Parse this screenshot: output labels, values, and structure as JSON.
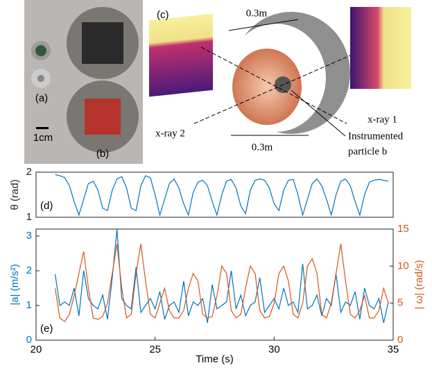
{
  "figure": {
    "labels": {
      "a": "(a)",
      "scale": "1cm",
      "b": "(b)",
      "c": "(c)",
      "size_top": "0.3m",
      "size_bottom": "0.3m",
      "xray2": "x-ray 2",
      "xray1": "x-ray 1",
      "particle": [
        "Instrumented",
        "particle b"
      ]
    }
  },
  "chart_data": [
    {
      "type": "line",
      "panel": "(d)",
      "ylabel": "θ (rad)",
      "xlim": [
        20,
        35
      ],
      "ylim": [
        1,
        2
      ],
      "yticks": [
        1,
        2
      ],
      "x": [
        20.8,
        21.0,
        21.2,
        21.4,
        21.6,
        21.8,
        22.0,
        22.2,
        22.4,
        22.6,
        22.8,
        23.0,
        23.2,
        23.4,
        23.6,
        23.8,
        24.0,
        24.2,
        24.4,
        24.6,
        24.8,
        25.0,
        25.2,
        25.4,
        25.6,
        25.8,
        26.0,
        26.2,
        26.4,
        26.6,
        26.8,
        27.0,
        27.2,
        27.4,
        27.6,
        27.8,
        28.0,
        28.2,
        28.4,
        28.6,
        28.8,
        29.0,
        29.2,
        29.4,
        29.6,
        29.8,
        30.0,
        30.2,
        30.4,
        30.6,
        30.8,
        31.0,
        31.2,
        31.4,
        31.6,
        31.8,
        32.0,
        32.2,
        32.4,
        32.6,
        32.8,
        33.0,
        33.2,
        33.4,
        33.6,
        33.8,
        34.0,
        34.2,
        34.4,
        34.6,
        34.8
      ],
      "series": [
        {
          "color": "#0072bd",
          "values": [
            1.95,
            1.92,
            1.88,
            1.7,
            1.35,
            1.05,
            1.4,
            1.75,
            1.8,
            1.6,
            1.2,
            1.15,
            1.6,
            1.85,
            1.9,
            1.65,
            1.2,
            1.15,
            1.7,
            1.92,
            1.88,
            1.5,
            1.05,
            1.4,
            1.75,
            1.85,
            1.65,
            1.3,
            1.05,
            1.55,
            1.78,
            1.82,
            1.7,
            1.35,
            1.05,
            1.5,
            1.8,
            1.84,
            1.65,
            1.25,
            1.08,
            1.6,
            1.82,
            1.85,
            1.82,
            1.65,
            1.3,
            1.15,
            1.6,
            1.82,
            1.84,
            1.5,
            1.05,
            1.4,
            1.75,
            1.85,
            1.7,
            1.4,
            1.05,
            1.5,
            1.8,
            1.85,
            1.7,
            1.35,
            1.05,
            1.5,
            1.78,
            1.82,
            1.84,
            1.82,
            1.8
          ]
        }
      ]
    },
    {
      "type": "line",
      "panel": "(e)",
      "xlabel": "Time (s)",
      "ylabel": "|a| (m/s²)",
      "y2label": "| ω| (rad/s)",
      "xlim": [
        20,
        35
      ],
      "xticks": [
        20,
        25,
        30,
        35
      ],
      "ylim": [
        0,
        3.2
      ],
      "yticks": [
        0,
        1,
        2,
        3
      ],
      "y2lim": [
        0,
        15
      ],
      "y2ticks": [
        0,
        5,
        10,
        15
      ],
      "x": [
        20.8,
        21.0,
        21.2,
        21.4,
        21.6,
        21.8,
        22.0,
        22.2,
        22.4,
        22.6,
        22.8,
        23.0,
        23.2,
        23.4,
        23.6,
        23.8,
        24.0,
        24.2,
        24.4,
        24.6,
        24.8,
        25.0,
        25.2,
        25.4,
        25.6,
        25.8,
        26.0,
        26.2,
        26.4,
        26.6,
        26.8,
        27.0,
        27.2,
        27.4,
        27.6,
        27.8,
        28.0,
        28.2,
        28.4,
        28.6,
        28.8,
        29.0,
        29.2,
        29.4,
        29.6,
        29.8,
        30.0,
        30.2,
        30.4,
        30.6,
        30.8,
        31.0,
        31.2,
        31.4,
        31.6,
        31.8,
        32.0,
        32.2,
        32.4,
        32.6,
        32.8,
        33.0,
        33.2,
        33.4,
        33.6,
        33.8,
        34.0,
        34.2,
        34.4,
        34.6,
        34.8
      ],
      "series": [
        {
          "color": "#0072bd",
          "values": [
            1.9,
            1.0,
            1.1,
            1.0,
            1.5,
            0.7,
            2.0,
            1.2,
            1.0,
            0.9,
            1.3,
            0.6,
            1.8,
            3.2,
            1.2,
            1.0,
            0.9,
            2.1,
            0.8,
            1.0,
            1.2,
            0.9,
            1.4,
            0.6,
            1.0,
            1.1,
            0.8,
            1.7,
            0.7,
            1.1,
            1.0,
            1.2,
            0.5,
            1.6,
            0.9,
            1.0,
            1.1,
            2.0,
            0.9,
            1.3,
            0.7,
            1.0,
            1.1,
            1.8,
            0.8,
            1.0,
            1.2,
            0.9,
            1.5,
            1.0,
            1.1,
            0.8,
            2.2,
            0.9,
            1.0,
            1.3,
            0.7,
            1.2,
            1.0,
            1.9,
            0.8,
            1.1,
            1.0,
            1.4,
            0.6,
            1.5,
            1.0,
            0.9,
            1.2,
            0.5,
            1.1
          ]
        },
        {
          "color": "#d95319",
          "axis": "y2",
          "values": [
            7,
            3,
            2.5,
            3.5,
            6,
            9,
            12,
            7,
            3,
            2.8,
            3.2,
            5,
            9,
            13,
            7,
            3,
            3.5,
            9,
            13,
            8,
            3.5,
            3,
            5,
            7,
            4,
            3,
            3,
            4,
            7,
            9,
            8,
            3.5,
            3,
            3.2,
            6,
            10,
            9,
            4,
            3,
            3.5,
            7,
            10,
            9,
            4,
            3,
            3.2,
            5,
            9,
            10,
            8,
            3.5,
            3,
            5,
            10,
            11,
            9,
            3.5,
            3,
            5,
            9,
            13,
            8,
            3.5,
            3,
            4,
            6,
            3,
            3,
            4,
            7,
            5
          ]
        }
      ]
    }
  ]
}
